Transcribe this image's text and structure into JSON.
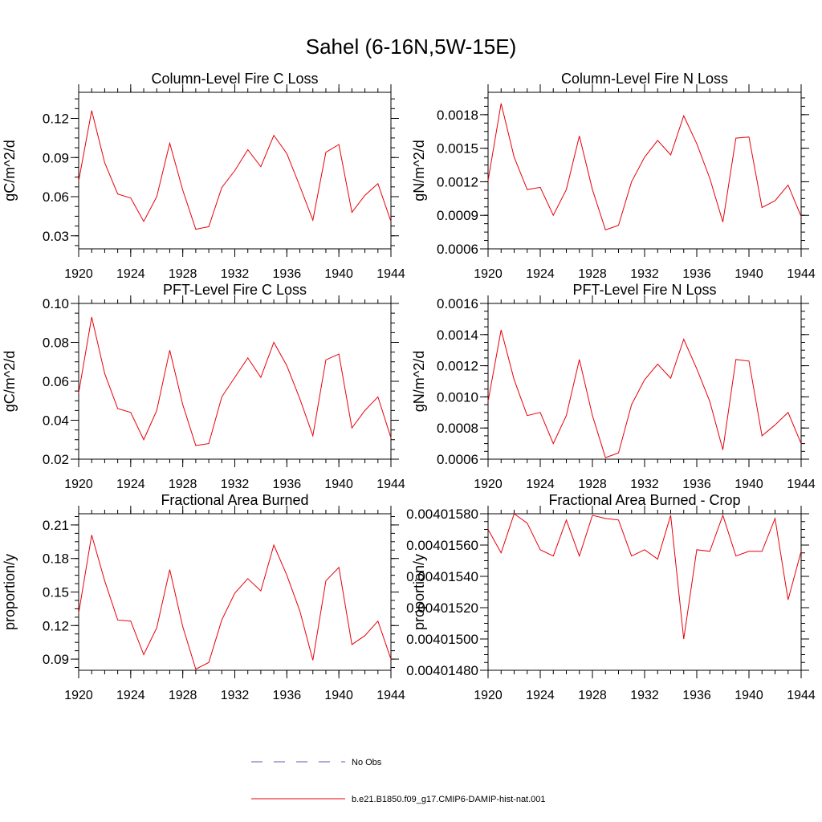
{
  "title": "Sahel (6-16N,5W-15E)",
  "chart_data": [
    {
      "type": "line",
      "title": "Column-Level Fire C Loss",
      "ylabel": "gC/m^2/d",
      "xlim": [
        1920,
        1944
      ],
      "ylim": [
        0.02,
        0.14
      ],
      "xticks": [
        1920,
        1924,
        1928,
        1932,
        1936,
        1940,
        1944
      ],
      "xtick_labels": [
        "1920",
        "1924",
        "1928",
        "1932",
        "1936",
        "1940",
        "1944"
      ],
      "yticks": [
        0.03,
        0.06,
        0.09,
        0.12
      ],
      "ytick_labels": [
        "0.03",
        "0.06",
        "0.09",
        "0.12"
      ],
      "x": [
        1920,
        1921,
        1922,
        1923,
        1924,
        1925,
        1926,
        1927,
        1928,
        1929,
        1930,
        1931,
        1932,
        1933,
        1934,
        1935,
        1936,
        1937,
        1938,
        1939,
        1940,
        1941,
        1942,
        1943,
        1944
      ],
      "series": [
        {
          "name": "b.e21.B1850.f09_g17.CMIP6-DAMIP-hist-nat.001",
          "color": "#e8000b",
          "values": [
            0.072,
            0.126,
            0.086,
            0.062,
            0.059,
            0.041,
            0.06,
            0.101,
            0.065,
            0.035,
            0.037,
            0.067,
            0.08,
            0.096,
            0.083,
            0.107,
            0.093,
            0.068,
            0.042,
            0.094,
            0.1,
            0.048,
            0.061,
            0.07,
            0.041
          ]
        }
      ]
    },
    {
      "type": "line",
      "title": "Column-Level Fire N Loss",
      "ylabel": "gN/m^2/d",
      "xlim": [
        1920,
        1944
      ],
      "ylim": [
        0.0006,
        0.002
      ],
      "xticks": [
        1920,
        1924,
        1928,
        1932,
        1936,
        1940,
        1944
      ],
      "xtick_labels": [
        "1920",
        "1924",
        "1928",
        "1932",
        "1936",
        "1940",
        "1944"
      ],
      "yticks": [
        0.0006,
        0.0009,
        0.0012,
        0.0015,
        0.0018
      ],
      "ytick_labels": [
        "0.0006",
        "0.0009",
        "0.0012",
        "0.0015",
        "0.0018"
      ],
      "x": [
        1920,
        1921,
        1922,
        1923,
        1924,
        1925,
        1926,
        1927,
        1928,
        1929,
        1930,
        1931,
        1932,
        1933,
        1934,
        1935,
        1936,
        1937,
        1938,
        1939,
        1940,
        1941,
        1942,
        1943,
        1944
      ],
      "series": [
        {
          "name": "b.e21.B1850.f09_g17.CMIP6-DAMIP-hist-nat.001",
          "color": "#e8000b",
          "values": [
            0.00121,
            0.0019,
            0.00142,
            0.00113,
            0.00115,
            0.0009,
            0.00113,
            0.00161,
            0.00113,
            0.00077,
            0.00081,
            0.0012,
            0.00142,
            0.00157,
            0.00144,
            0.00179,
            0.00154,
            0.00123,
            0.00084,
            0.00159,
            0.0016,
            0.00097,
            0.00103,
            0.00117,
            0.00089
          ]
        }
      ]
    },
    {
      "type": "line",
      "title": "PFT-Level Fire C Loss",
      "ylabel": "gC/m^2/d",
      "xlim": [
        1920,
        1944
      ],
      "ylim": [
        0.02,
        0.1
      ],
      "xticks": [
        1920,
        1924,
        1928,
        1932,
        1936,
        1940,
        1944
      ],
      "xtick_labels": [
        "1920",
        "1924",
        "1928",
        "1932",
        "1936",
        "1940",
        "1944"
      ],
      "yticks": [
        0.02,
        0.04,
        0.06,
        0.08,
        0.1
      ],
      "ytick_labels": [
        "0.02",
        "0.04",
        "0.06",
        "0.08",
        "0.10"
      ],
      "x": [
        1920,
        1921,
        1922,
        1923,
        1924,
        1925,
        1926,
        1927,
        1928,
        1929,
        1930,
        1931,
        1932,
        1933,
        1934,
        1935,
        1936,
        1937,
        1938,
        1939,
        1940,
        1941,
        1942,
        1943,
        1944
      ],
      "series": [
        {
          "name": "b.e21.B1850.f09_g17.CMIP6-DAMIP-hist-nat.001",
          "color": "#e8000b",
          "values": [
            0.054,
            0.093,
            0.064,
            0.046,
            0.044,
            0.03,
            0.045,
            0.076,
            0.048,
            0.027,
            0.028,
            0.052,
            0.062,
            0.072,
            0.062,
            0.08,
            0.068,
            0.051,
            0.032,
            0.071,
            0.074,
            0.036,
            0.045,
            0.052,
            0.031
          ]
        }
      ]
    },
    {
      "type": "line",
      "title": "PFT-Level Fire N Loss",
      "ylabel": "gN/m^2/d",
      "xlim": [
        1920,
        1944
      ],
      "ylim": [
        0.0006,
        0.0016
      ],
      "xticks": [
        1920,
        1924,
        1928,
        1932,
        1936,
        1940,
        1944
      ],
      "xtick_labels": [
        "1920",
        "1924",
        "1928",
        "1932",
        "1936",
        "1940",
        "1944"
      ],
      "yticks": [
        0.0006,
        0.0008,
        0.001,
        0.0012,
        0.0014,
        0.0016
      ],
      "ytick_labels": [
        "0.0006",
        "0.0008",
        "0.0010",
        "0.0012",
        "0.0014",
        "0.0016"
      ],
      "x": [
        1920,
        1921,
        1922,
        1923,
        1924,
        1925,
        1926,
        1927,
        1928,
        1929,
        1930,
        1931,
        1932,
        1933,
        1934,
        1935,
        1936,
        1937,
        1938,
        1939,
        1940,
        1941,
        1942,
        1943,
        1944
      ],
      "series": [
        {
          "name": "b.e21.B1850.f09_g17.CMIP6-DAMIP-hist-nat.001",
          "color": "#e8000b",
          "values": [
            0.00097,
            0.00143,
            0.00111,
            0.00088,
            0.0009,
            0.0007,
            0.00088,
            0.00124,
            0.00088,
            0.00061,
            0.00064,
            0.00095,
            0.00111,
            0.00121,
            0.00112,
            0.00137,
            0.00118,
            0.00097,
            0.00066,
            0.00124,
            0.00123,
            0.00075,
            0.00082,
            0.0009,
            0.0007
          ]
        }
      ]
    },
    {
      "type": "line",
      "title": "Fractional Area Burned",
      "ylabel": "proportion/y",
      "xlim": [
        1920,
        1944
      ],
      "ylim": [
        0.08,
        0.22
      ],
      "xticks": [
        1920,
        1924,
        1928,
        1932,
        1936,
        1940,
        1944
      ],
      "xtick_labels": [
        "1920",
        "1924",
        "1928",
        "1932",
        "1936",
        "1940",
        "1944"
      ],
      "yticks": [
        0.09,
        0.12,
        0.15,
        0.18,
        0.21
      ],
      "ytick_labels": [
        "0.09",
        "0.12",
        "0.15",
        "0.18",
        "0.21"
      ],
      "x": [
        1920,
        1921,
        1922,
        1923,
        1924,
        1925,
        1926,
        1927,
        1928,
        1929,
        1930,
        1931,
        1932,
        1933,
        1934,
        1935,
        1936,
        1937,
        1938,
        1939,
        1940,
        1941,
        1942,
        1943,
        1944
      ],
      "series": [
        {
          "name": "b.e21.B1850.f09_g17.CMIP6-DAMIP-hist-nat.001",
          "color": "#e8000b",
          "values": [
            0.131,
            0.201,
            0.16,
            0.125,
            0.124,
            0.094,
            0.118,
            0.17,
            0.119,
            0.081,
            0.087,
            0.125,
            0.149,
            0.162,
            0.151,
            0.192,
            0.165,
            0.133,
            0.089,
            0.16,
            0.172,
            0.103,
            0.111,
            0.124,
            0.09
          ]
        }
      ]
    },
    {
      "type": "line",
      "title": "Fractional Area Burned - Crop",
      "ylabel": "proportion/y",
      "xlim": [
        1920,
        1944
      ],
      "ylim": [
        0.0040148,
        0.0040158
      ],
      "xticks": [
        1920,
        1924,
        1928,
        1932,
        1936,
        1940,
        1944
      ],
      "xtick_labels": [
        "1920",
        "1924",
        "1928",
        "1932",
        "1936",
        "1940",
        "1944"
      ],
      "yticks": [
        0.0040148,
        0.004015,
        0.0040152,
        0.0040154,
        0.0040156,
        0.0040158
      ],
      "ytick_labels": [
        "0.00401480",
        "0.00401500",
        "0.00401520",
        "0.00401540",
        "0.00401560",
        "0.00401580"
      ],
      "x": [
        1920,
        1921,
        1922,
        1923,
        1924,
        1925,
        1926,
        1927,
        1928,
        1929,
        1930,
        1931,
        1932,
        1933,
        1934,
        1935,
        1936,
        1937,
        1938,
        1939,
        1940,
        1941,
        1942,
        1943,
        1944
      ],
      "series": [
        {
          "name": "b.e21.B1850.f09_g17.CMIP6-DAMIP-hist-nat.001",
          "color": "#e8000b",
          "values": [
            0.0040157,
            0.00401555,
            0.0040158,
            0.00401574,
            0.00401557,
            0.00401553,
            0.00401576,
            0.00401553,
            0.00401579,
            0.00401577,
            0.00401576,
            0.00401553,
            0.00401557,
            0.00401551,
            0.00401579,
            0.004015,
            0.00401557,
            0.00401556,
            0.00401579,
            0.00401553,
            0.00401556,
            0.00401556,
            0.00401577,
            0.00401525,
            0.00401556
          ]
        }
      ]
    }
  ],
  "legend": {
    "items": [
      {
        "label": "No Obs",
        "color": "#5b5bb5",
        "style": "dashed"
      },
      {
        "label": "b.e21.B1850.f09_g17.CMIP6-DAMIP-hist-nat.001",
        "color": "#e8000b",
        "style": "solid"
      }
    ]
  }
}
